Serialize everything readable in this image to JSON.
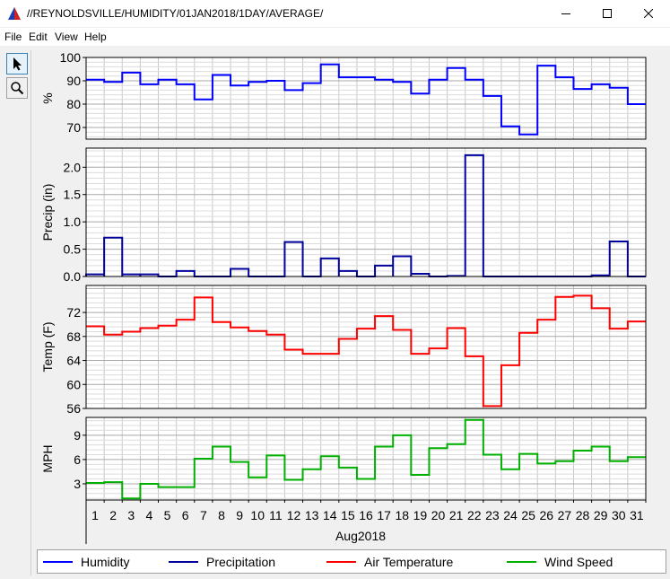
{
  "window": {
    "title": "//REYNOLDSVILLE/HUMIDITY/01JAN2018/1DAY/AVERAGE/",
    "minimize_icon": "minimize-icon",
    "maximize_icon": "maximize-icon",
    "close_icon": "close-icon"
  },
  "menu": {
    "file": "File",
    "edit": "Edit",
    "view": "View",
    "help": "Help"
  },
  "tools": {
    "pointer_icon": "pointer-arrow-icon",
    "zoom_icon": "magnifier-icon"
  },
  "chart_data": {
    "type": "line",
    "step": true,
    "grid": true,
    "legend_position": "bottom",
    "xlabel": "Aug2018",
    "x": [
      1,
      2,
      3,
      4,
      5,
      6,
      7,
      8,
      9,
      10,
      11,
      12,
      13,
      14,
      15,
      16,
      17,
      18,
      19,
      20,
      21,
      22,
      23,
      24,
      25,
      26,
      27,
      28,
      29,
      30,
      31
    ],
    "xtick_labels": [
      "1",
      "2",
      "3",
      "4",
      "5",
      "6",
      "7",
      "8",
      "9",
      "10",
      "11",
      "12",
      "13",
      "14",
      "15",
      "16",
      "17",
      "18",
      "19",
      "20",
      "21",
      "22",
      "23",
      "24",
      "25",
      "26",
      "27",
      "28",
      "29",
      "30",
      "31"
    ],
    "panels": [
      {
        "ylabel": "%",
        "ylim": [
          65,
          100
        ],
        "yticks": [
          70,
          80,
          90,
          100
        ],
        "series": [
          {
            "name": "Humidity",
            "color": "#0000ff",
            "values": [
              90.5,
              89.5,
              93.5,
              88.5,
              90.5,
              88.5,
              82,
              92.5,
              88,
              89.5,
              90,
              86,
              89,
              97,
              91.5,
              91.5,
              90.5,
              89.5,
              84.5,
              90.5,
              95.5,
              90.5,
              83.5,
              70.5,
              67,
              96.5,
              91.5,
              86.5,
              88.5,
              87,
              80
            ]
          }
        ]
      },
      {
        "ylabel": "Precip (in)",
        "ylim": [
          0,
          2.35
        ],
        "yticks": [
          0.0,
          0.5,
          1.0,
          1.5,
          2.0
        ],
        "ytick_labels": [
          "0.0",
          "0.5",
          "1.0",
          "1.5",
          "2.0"
        ],
        "series": [
          {
            "name": "Precipitation",
            "color": "#00009c",
            "bar_style": true,
            "values": [
              0.04,
              0.71,
              0.04,
              0.04,
              0,
              0.1,
              0,
              0,
              0.14,
              0,
              0,
              0.63,
              0,
              0.33,
              0.1,
              0,
              0.2,
              0.37,
              0.05,
              0,
              0.01,
              2.22,
              0,
              0,
              0,
              0,
              0,
              0,
              0.02,
              0.64,
              0
            ]
          }
        ]
      },
      {
        "ylabel": "Temp (F)",
        "ylim": [
          56,
          76.5
        ],
        "yticks": [
          56,
          60,
          64,
          68,
          72
        ],
        "series": [
          {
            "name": "Air Temperature",
            "color": "#ff0000",
            "values": [
              69.7,
              68.3,
              68.8,
              69.4,
              69.8,
              70.8,
              74.5,
              70.4,
              69.5,
              68.9,
              68.3,
              65.8,
              65.1,
              65.1,
              67.6,
              69.3,
              71.4,
              69.1,
              65.1,
              66,
              69.4,
              64.7,
              56.4,
              63.2,
              68.6,
              70.8,
              74.6,
              74.8,
              72.7,
              69.3,
              70.5
            ]
          }
        ]
      },
      {
        "ylabel": "MPH",
        "ylim": [
          1,
          11.2
        ],
        "yticks": [
          3,
          6,
          9
        ],
        "series": [
          {
            "name": "Wind Speed",
            "color": "#00b000",
            "values": [
              3.1,
              3.2,
              1.2,
              3,
              2.6,
              2.6,
              6.1,
              7.6,
              5.7,
              3.8,
              6.5,
              3.5,
              4.8,
              6.4,
              5,
              3.6,
              7.6,
              9,
              4.1,
              7.4,
              7.9,
              10.9,
              6.6,
              4.8,
              6.7,
              5.5,
              5.8,
              7.1,
              7.6,
              5.8,
              6.3
            ]
          }
        ]
      }
    ]
  }
}
